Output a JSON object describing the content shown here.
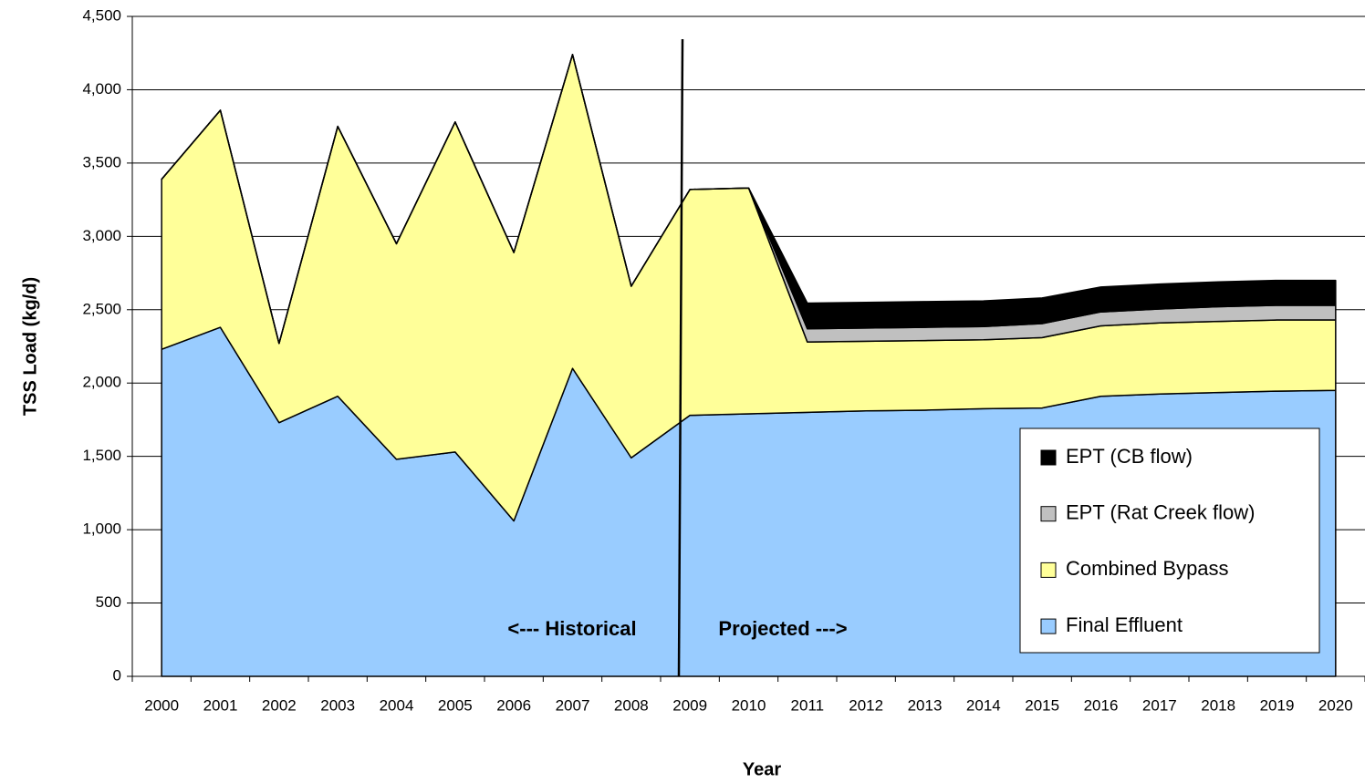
{
  "chart_data": {
    "type": "stacked_area",
    "x_label": "Year",
    "y_label": "TSS Load (kg/d)",
    "categories": [
      "2000",
      "2001",
      "2002",
      "2003",
      "2004",
      "2005",
      "2006",
      "2007",
      "2008",
      "2009",
      "2010",
      "2011",
      "2012",
      "2013",
      "2014",
      "2015",
      "2016",
      "2017",
      "2018",
      "2019",
      "2020"
    ],
    "series": [
      {
        "name": "Final Effluent",
        "color": "#99ccff",
        "values": [
          2230,
          2380,
          1730,
          1910,
          1480,
          1530,
          1060,
          2100,
          1490,
          1780,
          1790,
          1800,
          1810,
          1815,
          1825,
          1830,
          1910,
          1925,
          1935,
          1945,
          1950
        ]
      },
      {
        "name": "Combined Bypass",
        "color": "#ffff99",
        "values": [
          1160,
          1480,
          540,
          1840,
          1470,
          2250,
          1830,
          2140,
          1170,
          1540,
          1540,
          480,
          475,
          475,
          470,
          480,
          480,
          485,
          485,
          485,
          480
        ]
      },
      {
        "name": "EPT (Rat Creek flow)",
        "color": "#c0c0c0",
        "values": [
          0,
          0,
          0,
          0,
          0,
          0,
          0,
          0,
          0,
          0,
          0,
          90,
          90,
          90,
          90,
          95,
          95,
          95,
          100,
          100,
          100
        ]
      },
      {
        "name": "EPT (CB flow)",
        "color": "#000000",
        "values": [
          0,
          0,
          0,
          0,
          0,
          0,
          0,
          0,
          0,
          0,
          0,
          175,
          175,
          175,
          175,
          175,
          170,
          170,
          170,
          170,
          170
        ]
      }
    ],
    "ylim": [
      0,
      4500
    ],
    "yticks": [
      0,
      500,
      {
        "value": 1000,
        "label": "1,000"
      },
      {
        "value": 1500,
        "label": "1,500"
      },
      {
        "value": 2000,
        "label": "2,000"
      },
      {
        "value": 2500,
        "label": "2,500"
      },
      {
        "value": 3000,
        "label": "3,000"
      },
      {
        "value": 3500,
        "label": "3,500"
      },
      {
        "value": 4000,
        "label": "4,000"
      },
      {
        "value": 4500,
        "label": "4,500"
      }
    ],
    "grid": true,
    "legend": "lower right",
    "annotations": [
      "<--- Historical",
      "Projected --->"
    ]
  }
}
